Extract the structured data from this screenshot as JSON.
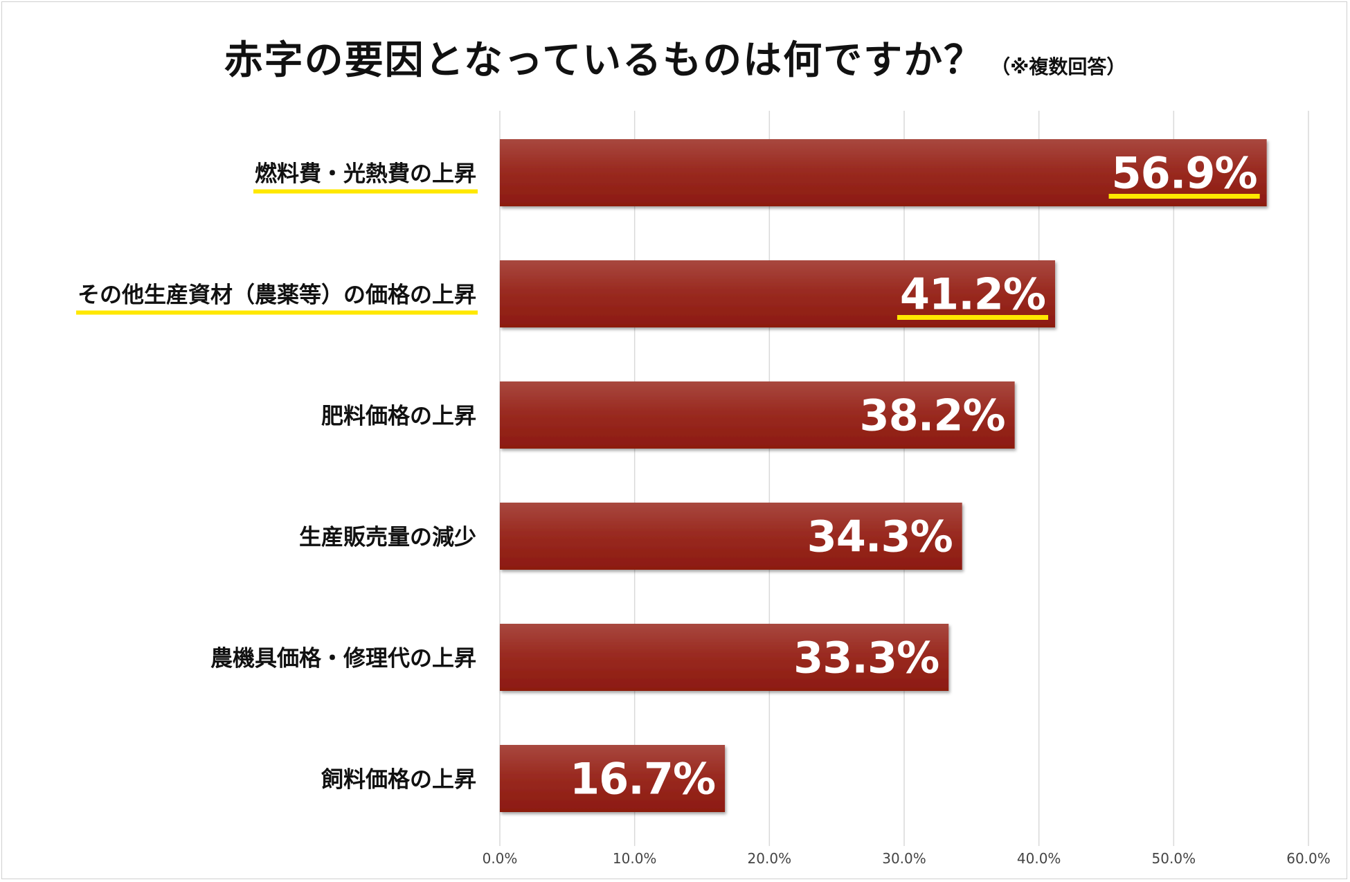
{
  "title": "赤字の要因となっているものは何ですか？",
  "title_note": "（※複数回答）",
  "colors": {
    "bar_top": "#a8483f",
    "bar_bottom": "#8c1a10",
    "highlight": "#ffe800",
    "grid": "#d9d9d9"
  },
  "chart_data": {
    "type": "bar",
    "orientation": "horizontal",
    "categories": [
      "燃料費・光熱費の上昇",
      "その他生産資材（農薬等）の価格の上昇",
      "肥料価格の上昇",
      "生産販売量の減少",
      "農機具価格・修理代の上昇",
      "飼料価格の上昇"
    ],
    "values": [
      56.9,
      41.2,
      38.2,
      34.3,
      33.3,
      16.7
    ],
    "value_labels": [
      "56.9%",
      "41.2%",
      "38.2%",
      "34.3%",
      "33.3%",
      "16.7%"
    ],
    "highlighted": [
      true,
      true,
      false,
      false,
      false,
      false
    ],
    "xlim": [
      0,
      60
    ],
    "ticks": [
      "0.0%",
      "10.0%",
      "20.0%",
      "30.0%",
      "40.0%",
      "50.0%",
      "60.0%"
    ],
    "grid": true,
    "legend": "none"
  }
}
